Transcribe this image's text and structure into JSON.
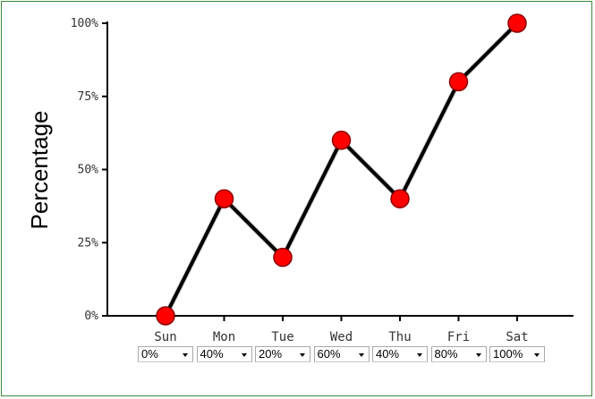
{
  "chart_data": {
    "type": "line",
    "categories": [
      "Sun",
      "Mon",
      "Tue",
      "Wed",
      "Thu",
      "Fri",
      "Sat"
    ],
    "values": [
      0,
      40,
      20,
      60,
      40,
      80,
      100
    ],
    "title": "",
    "xlabel": "",
    "ylabel": "Percentage",
    "ylim": [
      0,
      100
    ],
    "y_ticks": [
      0,
      25,
      50,
      75,
      100
    ],
    "y_tick_labels": [
      "0%",
      "25%",
      "50%",
      "75%",
      "100%"
    ],
    "grid": false,
    "line_color": "#000000",
    "marker_color": "#ff0000",
    "marker_edge_color": "#8b0000"
  },
  "dropdowns": [
    {
      "day": "Sun",
      "selected": "0%"
    },
    {
      "day": "Mon",
      "selected": "40%"
    },
    {
      "day": "Tue",
      "selected": "20%"
    },
    {
      "day": "Wed",
      "selected": "60%"
    },
    {
      "day": "Thu",
      "selected": "40%"
    },
    {
      "day": "Fri",
      "selected": "80%"
    },
    {
      "day": "Sat",
      "selected": "100%"
    }
  ]
}
